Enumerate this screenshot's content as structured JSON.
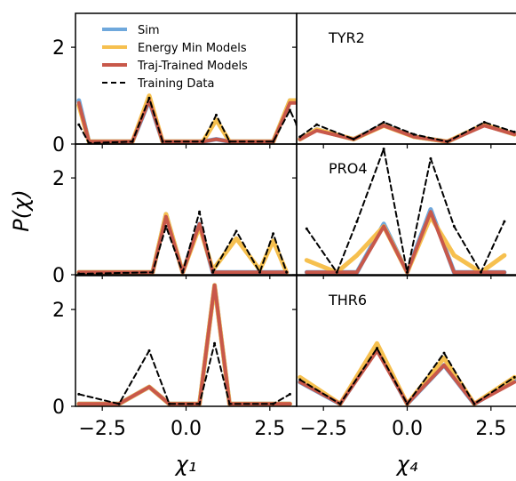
{
  "chart_data": {
    "type": "line",
    "layout": "3x2 grid of step-histogram panels sharing axes",
    "ylabel": "P(χ)",
    "xlabels": [
      "χ₁",
      "χ₄"
    ],
    "xlim": [
      -3.3,
      3.3
    ],
    "ylim": [
      0,
      2.7
    ],
    "xticks": [
      {
        "value": -2.5,
        "label": "−2.5"
      },
      {
        "value": 0.0,
        "label": "0.0"
      },
      {
        "value": 2.5,
        "label": "2.5"
      }
    ],
    "yticks": [
      {
        "value": 0,
        "label": "0"
      },
      {
        "value": 2,
        "label": "2"
      }
    ],
    "legend": {
      "position": "top of upper-left panel",
      "entries": [
        {
          "name": "Sim",
          "color": "#6fa8dc",
          "style": "solid"
        },
        {
          "name": "Energy Min Models",
          "color": "#f6c04f",
          "style": "solid"
        },
        {
          "name": "Traj-Trained Models",
          "color": "#c8584a",
          "style": "solid"
        },
        {
          "name": "Training Data",
          "color": "#000000",
          "style": "dashed"
        }
      ]
    },
    "panels": [
      {
        "row": 0,
        "col": 0,
        "label": "",
        "series": [
          {
            "name": "Sim",
            "x": [
              -3.2,
              -2.9,
              -1.6,
              -1.1,
              -0.7,
              0.5,
              0.9,
              1.3,
              2.6,
              3.1,
              3.3
            ],
            "y": [
              0.9,
              0.05,
              0.05,
              0.9,
              0.05,
              0.05,
              0.1,
              0.05,
              0.05,
              0.9,
              0.9
            ]
          },
          {
            "name": "Energy Min Models",
            "x": [
              -3.2,
              -2.9,
              -1.6,
              -1.1,
              -0.7,
              0.5,
              0.9,
              1.3,
              2.6,
              3.1,
              3.3
            ],
            "y": [
              0.8,
              0.05,
              0.05,
              1.0,
              0.05,
              0.05,
              0.5,
              0.05,
              0.05,
              0.9,
              0.9
            ]
          },
          {
            "name": "Traj-Trained Models",
            "x": [
              -3.2,
              -2.9,
              -1.6,
              -1.1,
              -0.7,
              0.5,
              0.9,
              1.3,
              2.6,
              3.1,
              3.3
            ],
            "y": [
              0.85,
              0.05,
              0.05,
              0.9,
              0.05,
              0.05,
              0.1,
              0.05,
              0.05,
              0.85,
              0.85
            ]
          },
          {
            "name": "Training Data",
            "x": [
              -3.2,
              -2.9,
              -1.6,
              -1.1,
              -0.7,
              0.5,
              0.9,
              1.3,
              2.6,
              3.1,
              3.3
            ],
            "y": [
              0.4,
              0.02,
              0.05,
              0.95,
              0.05,
              0.05,
              0.6,
              0.05,
              0.05,
              0.7,
              0.4
            ]
          }
        ]
      },
      {
        "row": 0,
        "col": 1,
        "label": "TYR2",
        "series": [
          {
            "name": "Sim",
            "x": [
              -3.2,
              -2.7,
              -1.6,
              -0.7,
              0.2,
              1.2,
              2.3,
              3.2
            ],
            "y": [
              0.1,
              0.3,
              0.1,
              0.4,
              0.15,
              0.05,
              0.4,
              0.2
            ]
          },
          {
            "name": "Energy Min Models",
            "x": [
              -3.2,
              -2.7,
              -1.6,
              -0.7,
              0.2,
              1.2,
              2.3,
              3.2
            ],
            "y": [
              0.1,
              0.3,
              0.1,
              0.38,
              0.15,
              0.05,
              0.4,
              0.2
            ]
          },
          {
            "name": "Traj-Trained Models",
            "x": [
              -3.2,
              -2.7,
              -1.6,
              -0.7,
              0.2,
              1.2,
              2.3,
              3.2
            ],
            "y": [
              0.1,
              0.28,
              0.1,
              0.38,
              0.15,
              0.05,
              0.38,
              0.2
            ]
          },
          {
            "name": "Training Data",
            "x": [
              -3.2,
              -2.7,
              -1.6,
              -0.7,
              0.2,
              1.2,
              2.3,
              3.2
            ],
            "y": [
              0.15,
              0.4,
              0.1,
              0.45,
              0.2,
              0.05,
              0.45,
              0.25
            ]
          }
        ]
      },
      {
        "row": 1,
        "col": 0,
        "label": "",
        "series": [
          {
            "name": "Sim",
            "x": [
              -3.2,
              -1.0,
              -0.6,
              -0.1,
              0.4,
              0.8,
              1.5,
              2.2,
              2.6,
              3.0
            ],
            "y": [
              0.05,
              0.05,
              1.25,
              0.05,
              1.05,
              0.05,
              0.05,
              0.05,
              0.05,
              0.05
            ]
          },
          {
            "name": "Energy Min Models",
            "x": [
              -3.2,
              -1.0,
              -0.6,
              -0.1,
              0.4,
              0.8,
              1.5,
              2.2,
              2.6,
              3.0
            ],
            "y": [
              0.05,
              0.05,
              1.25,
              0.05,
              1.0,
              0.1,
              0.75,
              0.1,
              0.7,
              0.05
            ]
          },
          {
            "name": "Traj-Trained Models",
            "x": [
              -3.2,
              -1.0,
              -0.6,
              -0.1,
              0.4,
              0.8,
              1.5,
              2.2,
              2.6,
              3.0
            ],
            "y": [
              0.05,
              0.05,
              1.2,
              0.05,
              1.05,
              0.05,
              0.05,
              0.05,
              0.05,
              0.05
            ]
          },
          {
            "name": "Training Data",
            "x": [
              -3.2,
              -1.0,
              -0.6,
              -0.1,
              0.4,
              0.8,
              1.5,
              2.2,
              2.6,
              3.0
            ],
            "y": [
              0.02,
              0.05,
              1.0,
              0.05,
              1.3,
              0.05,
              0.9,
              0.05,
              0.85,
              0.05
            ]
          }
        ]
      },
      {
        "row": 1,
        "col": 1,
        "label": "PRO4",
        "series": [
          {
            "name": "Sim",
            "x": [
              -3.0,
              -2.1,
              -1.5,
              -0.7,
              0.0,
              0.7,
              1.4,
              2.2,
              2.9
            ],
            "y": [
              0.05,
              0.05,
              0.05,
              1.05,
              0.05,
              1.35,
              0.05,
              0.05,
              0.05
            ]
          },
          {
            "name": "Energy Min Models",
            "x": [
              -3.0,
              -2.1,
              -1.5,
              -0.7,
              0.0,
              0.7,
              1.4,
              2.2,
              2.9
            ],
            "y": [
              0.3,
              0.05,
              0.4,
              1.0,
              0.05,
              1.2,
              0.4,
              0.05,
              0.4
            ]
          },
          {
            "name": "Traj-Trained Models",
            "x": [
              -3.0,
              -2.1,
              -1.5,
              -0.7,
              0.0,
              0.7,
              1.4,
              2.2,
              2.9
            ],
            "y": [
              0.05,
              0.05,
              0.05,
              1.0,
              0.05,
              1.3,
              0.05,
              0.05,
              0.05
            ]
          },
          {
            "name": "Training Data",
            "x": [
              -3.0,
              -2.1,
              -1.5,
              -0.7,
              0.0,
              0.7,
              1.4,
              2.2,
              2.9
            ],
            "y": [
              0.95,
              0.05,
              1.1,
              2.6,
              0.05,
              2.4,
              1.0,
              0.05,
              1.1
            ]
          }
        ]
      },
      {
        "row": 2,
        "col": 0,
        "label": "",
        "series": [
          {
            "name": "Sim",
            "x": [
              -3.2,
              -2.0,
              -1.1,
              -0.5,
              0.4,
              0.85,
              1.3,
              2.6,
              3.1
            ],
            "y": [
              0.05,
              0.05,
              0.4,
              0.05,
              0.05,
              2.5,
              0.05,
              0.05,
              0.05
            ]
          },
          {
            "name": "Energy Min Models",
            "x": [
              -3.2,
              -2.0,
              -1.1,
              -0.5,
              0.4,
              0.85,
              1.3,
              2.6,
              3.1
            ],
            "y": [
              0.05,
              0.05,
              0.4,
              0.05,
              0.05,
              2.5,
              0.05,
              0.05,
              0.05
            ]
          },
          {
            "name": "Traj-Trained Models",
            "x": [
              -3.2,
              -2.0,
              -1.1,
              -0.5,
              0.4,
              0.85,
              1.3,
              2.6,
              3.1
            ],
            "y": [
              0.05,
              0.05,
              0.4,
              0.05,
              0.05,
              2.5,
              0.05,
              0.05,
              0.05
            ]
          },
          {
            "name": "Training Data",
            "x": [
              -3.2,
              -2.0,
              -1.1,
              -0.5,
              0.4,
              0.85,
              1.3,
              2.6,
              3.1
            ],
            "y": [
              0.25,
              0.05,
              1.15,
              0.05,
              0.05,
              1.3,
              0.05,
              0.05,
              0.25
            ]
          }
        ]
      },
      {
        "row": 2,
        "col": 1,
        "label": "THR6",
        "series": [
          {
            "name": "Sim",
            "x": [
              -3.2,
              -2.0,
              -0.9,
              0.0,
              1.1,
              2.0,
              3.2
            ],
            "y": [
              0.5,
              0.05,
              1.2,
              0.05,
              0.85,
              0.05,
              0.55
            ]
          },
          {
            "name": "Energy Min Models",
            "x": [
              -3.2,
              -2.0,
              -0.9,
              0.0,
              1.1,
              2.0,
              3.2
            ],
            "y": [
              0.6,
              0.05,
              1.3,
              0.05,
              1.0,
              0.05,
              0.6
            ]
          },
          {
            "name": "Traj-Trained Models",
            "x": [
              -3.2,
              -2.0,
              -0.9,
              0.0,
              1.1,
              2.0,
              3.2
            ],
            "y": [
              0.5,
              0.05,
              1.15,
              0.05,
              0.85,
              0.05,
              0.5
            ]
          },
          {
            "name": "Training Data",
            "x": [
              -3.2,
              -2.0,
              -0.9,
              0.0,
              1.1,
              2.0,
              3.2
            ],
            "y": [
              0.55,
              0.05,
              1.2,
              0.05,
              1.1,
              0.05,
              0.6
            ]
          }
        ]
      }
    ]
  }
}
